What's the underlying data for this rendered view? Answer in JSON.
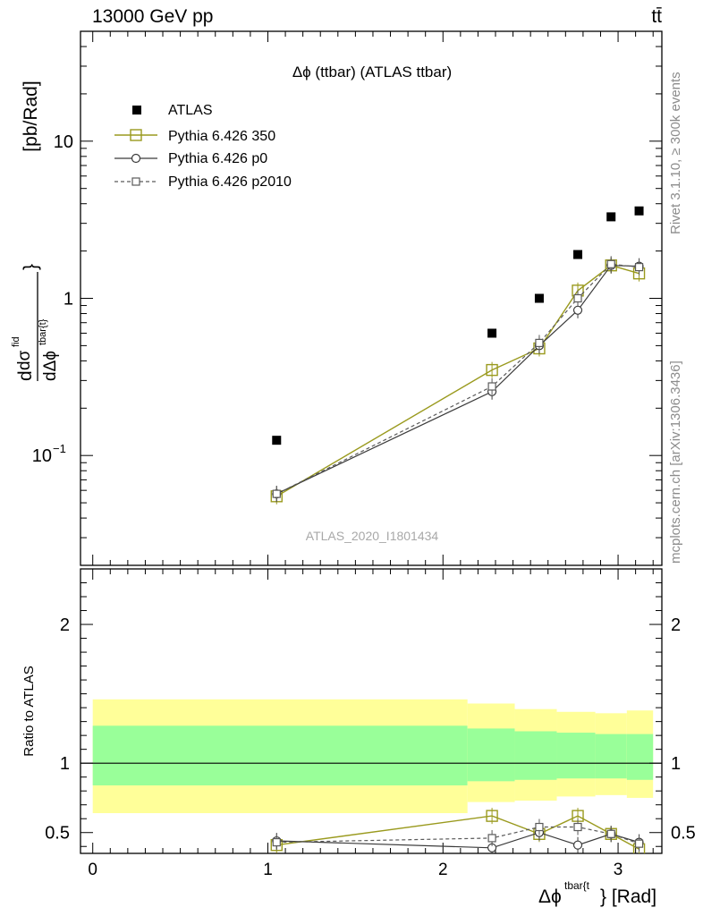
{
  "header": {
    "energy_label": "13000 GeV pp",
    "process_label": "tt̄",
    "rivet_label": "Rivet 3.1.10, ≥ 300k events",
    "mcplots_label": "mcplots.cern.ch [arXiv:1306.3436]",
    "analysis_id": "ATLAS_2020_I1801434"
  },
  "colors": {
    "atlas": "#000000",
    "p350": "#9a9a1e",
    "p0": "#3a3a3a",
    "p2010": "#5a5a5a",
    "band_outer": "#ffff99",
    "band_inner": "#99ff99"
  },
  "chart_data": [
    {
      "type": "scatter",
      "panel": "main",
      "title": "Δϕ (ttbar) (ATLAS ttbar)",
      "ylabel": "dσ^fid / dΔϕ^tbar{t} [pb/Rad]",
      "yscale": "log",
      "ylim": [
        0.02,
        50
      ],
      "xlim": [
        -0.07,
        3.25
      ],
      "yticks": [
        {
          "value": 0.1,
          "base": "10",
          "exp": "−1"
        },
        {
          "value": 1,
          "label": "1"
        },
        {
          "value": 10,
          "label": "10"
        }
      ],
      "legend_position": "top-left",
      "series": [
        {
          "name": "ATLAS",
          "key": "atlas",
          "style": "square-filled",
          "x": [
            1.05,
            2.28,
            2.55,
            2.77,
            2.96,
            3.12
          ],
          "y": [
            0.125,
            0.6,
            1.0,
            1.9,
            3.3,
            3.6
          ]
        },
        {
          "name": "Pythia 6.426 350",
          "key": "p350",
          "style": "square-open-line",
          "x": [
            1.05,
            2.28,
            2.55,
            2.77,
            2.96,
            3.12
          ],
          "y": [
            0.055,
            0.35,
            0.48,
            1.12,
            1.62,
            1.44
          ]
        },
        {
          "name": "Pythia 6.426 p0",
          "key": "p0",
          "style": "circle-open-line",
          "x": [
            1.05,
            2.28,
            2.55,
            2.77,
            2.96,
            3.12
          ],
          "y": [
            0.057,
            0.255,
            0.5,
            0.84,
            1.62,
            1.6
          ]
        },
        {
          "name": "Pythia 6.426 p2010",
          "key": "p2010",
          "style": "square-open-dashed",
          "x": [
            1.05,
            2.28,
            2.55,
            2.77,
            2.96,
            3.12
          ],
          "y": [
            0.057,
            0.275,
            0.52,
            1.0,
            1.65,
            1.58
          ]
        }
      ]
    },
    {
      "type": "line",
      "panel": "ratio",
      "ylabel": "Ratio to ATLAS",
      "ylim": [
        0.35,
        2.4
      ],
      "xlim": [
        -0.07,
        3.25
      ],
      "xlabel_main": "Δϕ",
      "xlabel_sup": "tbar{t",
      "xlabel_unit": "} [Rad]",
      "xticks": [
        "0",
        "1",
        "2",
        "3"
      ],
      "xtick_values": [
        0,
        1,
        2,
        3
      ],
      "yticks": [
        "0.5",
        "1",
        "2"
      ],
      "ytick_values": [
        0.5,
        1,
        2
      ],
      "bands": {
        "edges": [
          0.0,
          2.14,
          2.41,
          2.65,
          2.87,
          3.05,
          3.2
        ],
        "outer_lo": [
          0.64,
          0.72,
          0.73,
          0.76,
          0.77,
          0.75
        ],
        "outer_hi": [
          1.46,
          1.43,
          1.39,
          1.37,
          1.36,
          1.38
        ],
        "inner_lo": [
          0.84,
          0.87,
          0.88,
          0.89,
          0.89,
          0.88
        ],
        "inner_hi": [
          1.27,
          1.25,
          1.23,
          1.22,
          1.21,
          1.21
        ]
      },
      "series": [
        {
          "name": "Pythia 6.426 350",
          "key": "p350",
          "style": "square-open-line",
          "x": [
            1.05,
            2.28,
            2.55,
            2.77,
            2.96,
            3.12
          ],
          "y": [
            0.41,
            0.62,
            0.49,
            0.62,
            0.49,
            0.38
          ]
        },
        {
          "name": "Pythia 6.426 p0",
          "key": "p0",
          "style": "circle-open-line",
          "x": [
            1.05,
            2.28,
            2.55,
            2.77,
            2.96,
            3.12
          ],
          "y": [
            0.44,
            0.39,
            0.5,
            0.41,
            0.49,
            0.43
          ]
        },
        {
          "name": "Pythia 6.426 p2010",
          "key": "p2010",
          "style": "square-open-dashed",
          "x": [
            1.05,
            2.28,
            2.55,
            2.77,
            2.96,
            3.12
          ],
          "y": [
            0.43,
            0.46,
            0.54,
            0.54,
            0.49,
            0.42
          ]
        }
      ]
    }
  ]
}
